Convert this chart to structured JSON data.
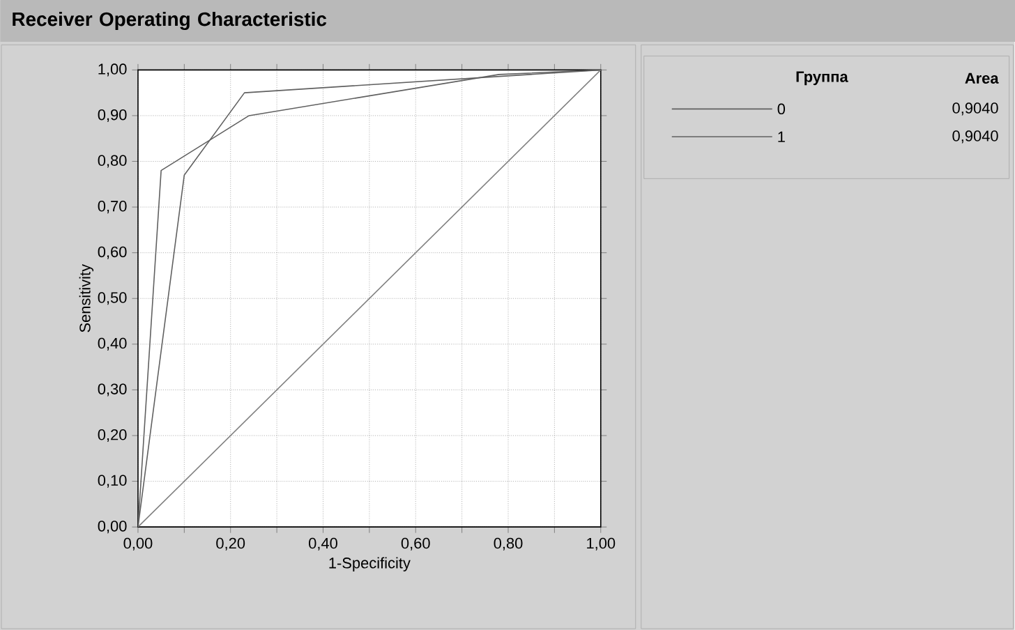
{
  "chart_data": {
    "type": "line",
    "title": "Receiver Operating Characteristic",
    "xlabel": "1-Specificity",
    "ylabel": "Sensitivity",
    "legend_title": "Группа",
    "series": [
      {
        "name": "0",
        "color": "#606060",
        "x": [
          0,
          0.05,
          0.24,
          0.78,
          1
        ],
        "values": [
          0,
          0.78,
          0.9,
          0.99,
          1
        ]
      },
      {
        "name": "1",
        "color": "#606060",
        "x": [
          0,
          0.1,
          0.23,
          1
        ],
        "values": [
          0,
          0.77,
          0.95,
          1
        ]
      },
      {
        "color": "#808080",
        "x": [
          0,
          1
        ],
        "values": [
          0,
          1
        ]
      }
    ],
    "annotations": [
      "Area",
      "0,9040",
      "0,9040"
    ],
    "xlim": [
      0,
      1
    ],
    "ylim": [
      0,
      1
    ],
    "xticks": [
      {
        "value": 0,
        "label": "0,00"
      },
      {
        "value": 0.1,
        "label": null
      },
      {
        "value": 0.2,
        "label": "0,20"
      },
      {
        "value": 0.3,
        "label": null
      },
      {
        "value": 0.4,
        "label": "0,40"
      },
      {
        "value": 0.5,
        "label": null
      },
      {
        "value": 0.6,
        "label": "0,60"
      },
      {
        "value": 0.7,
        "label": null
      },
      {
        "value": 0.8,
        "label": "0,80"
      },
      {
        "value": 0.9,
        "label": null
      },
      {
        "value": 1,
        "label": "1,00"
      }
    ],
    "yticks": [
      {
        "value": 0,
        "label": "0,00"
      },
      {
        "value": 0.1,
        "label": "0,10"
      },
      {
        "value": 0.2,
        "label": "0,20"
      },
      {
        "value": 0.3,
        "label": "0,30"
      },
      {
        "value": 0.4,
        "label": "0,40"
      },
      {
        "value": 0.5,
        "label": "0,50"
      },
      {
        "value": 0.6,
        "label": "0,60"
      },
      {
        "value": 0.7,
        "label": "0,70"
      },
      {
        "value": 0.8,
        "label": "0,80"
      },
      {
        "value": 0.9,
        "label": "0,90"
      },
      {
        "value": 1,
        "label": "1,00"
      }
    ],
    "grid": true,
    "legend": "top right",
    "marker": "none",
    "line_style": "solid"
  }
}
